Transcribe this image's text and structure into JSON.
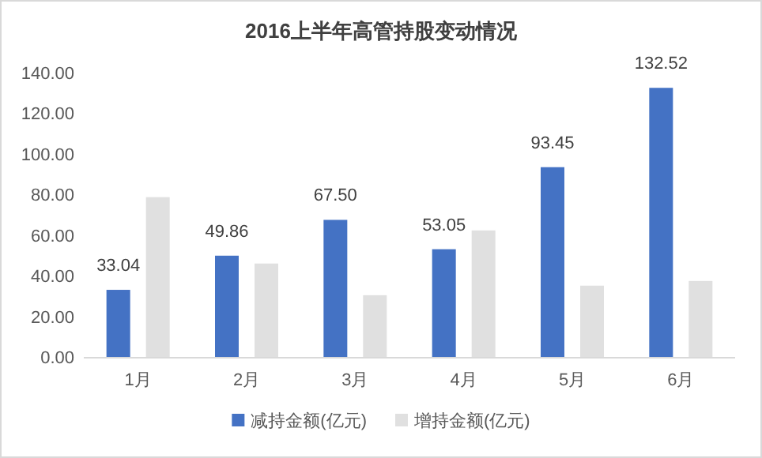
{
  "chart_data": {
    "type": "bar",
    "title": "2016上半年高管持股变动情况",
    "categories": [
      "1月",
      "2月",
      "3月",
      "4月",
      "5月",
      "6月"
    ],
    "series": [
      {
        "name": "减持金额(亿元)",
        "color": "#4472c4",
        "values": [
          33.04,
          49.86,
          67.5,
          53.05,
          93.45,
          132.52
        ],
        "value_labels": [
          "33.04",
          "49.86",
          "67.50",
          "53.05",
          "93.45",
          "132.52"
        ]
      },
      {
        "name": "增持金额(亿元)",
        "color": "#e0e0e0",
        "values": [
          78.7,
          46.0,
          30.4,
          62.3,
          35.1,
          37.4
        ]
      }
    ],
    "ylim": [
      0,
      140
    ],
    "yticks": [
      {
        "value": 0,
        "label": "0.00"
      },
      {
        "value": 20,
        "label": "20.00"
      },
      {
        "value": 40,
        "label": "40.00"
      },
      {
        "value": 60,
        "label": "60.00"
      },
      {
        "value": 80,
        "label": "80.00"
      },
      {
        "value": 100,
        "label": "100.00"
      },
      {
        "value": 120,
        "label": "120.00"
      },
      {
        "value": 140,
        "label": "140.00"
      }
    ],
    "grid": false,
    "legend": "bottom"
  }
}
